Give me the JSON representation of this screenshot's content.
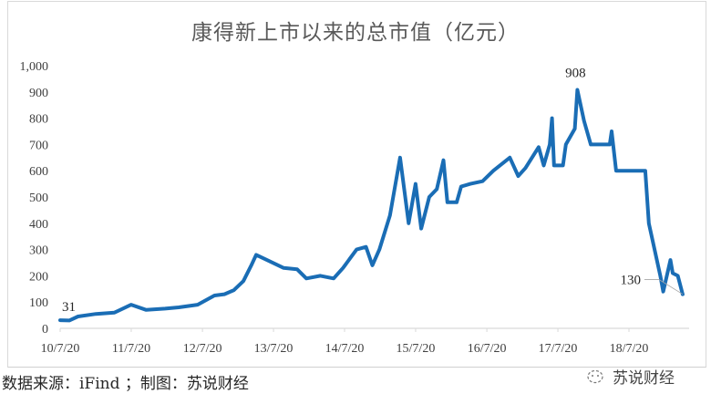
{
  "chart_data": {
    "type": "line",
    "title": "康得新上市以来的总市值（亿元）",
    "xlabel": "",
    "ylabel": "",
    "ylim": [
      0,
      1000
    ],
    "yticks": [
      "0",
      "100",
      "200",
      "300",
      "400",
      "500",
      "600",
      "700",
      "800",
      "900",
      "1,000"
    ],
    "xticks": [
      "10/7/20",
      "11/7/20",
      "12/7/20",
      "13/7/20",
      "14/7/20",
      "15/7/20",
      "16/7/20",
      "17/7/20",
      "18/7/20"
    ],
    "xtick_dates": [
      "2010-07-20",
      "2011-07-20",
      "2012-07-20",
      "2013-07-20",
      "2014-07-20",
      "2015-07-20",
      "2016-07-20",
      "2017-07-20",
      "2018-07-20"
    ],
    "grid": false,
    "legend": "none",
    "color": "#1a6db5",
    "series": [
      {
        "points": [
          [
            "2010-07-20",
            31
          ],
          [
            "2010-09-05",
            30
          ],
          [
            "2010-10-20",
            45
          ],
          [
            "2011-01-20",
            55
          ],
          [
            "2011-04-25",
            60
          ],
          [
            "2011-07-20",
            90
          ],
          [
            "2011-10-05",
            70
          ],
          [
            "2012-01-10",
            75
          ],
          [
            "2012-03-20",
            80
          ],
          [
            "2012-06-25",
            90
          ],
          [
            "2012-09-20",
            125
          ],
          [
            "2012-11-10",
            130
          ],
          [
            "2012-12-28",
            145
          ],
          [
            "2013-02-15",
            180
          ],
          [
            "2013-03-28",
            240
          ],
          [
            "2013-04-22",
            280
          ],
          [
            "2013-07-01",
            255
          ],
          [
            "2013-09-10",
            230
          ],
          [
            "2013-11-18",
            225
          ],
          [
            "2014-01-05",
            190
          ],
          [
            "2014-03-18",
            200
          ],
          [
            "2014-05-25",
            190
          ],
          [
            "2014-07-12",
            230
          ],
          [
            "2014-09-20",
            300
          ],
          [
            "2014-11-07",
            310
          ],
          [
            "2014-12-10",
            240
          ],
          [
            "2015-01-15",
            300
          ],
          [
            "2015-03-10",
            430
          ],
          [
            "2015-05-01",
            650
          ],
          [
            "2015-06-14",
            400
          ],
          [
            "2015-07-20",
            550
          ],
          [
            "2015-08-18",
            380
          ],
          [
            "2015-09-28",
            500
          ],
          [
            "2015-11-06",
            530
          ],
          [
            "2015-12-10",
            640
          ],
          [
            "2015-12-30",
            480
          ],
          [
            "2016-02-16",
            480
          ],
          [
            "2016-03-10",
            540
          ],
          [
            "2016-04-26",
            550
          ],
          [
            "2016-06-28",
            560
          ],
          [
            "2016-08-22",
            600
          ],
          [
            "2016-11-15",
            650
          ],
          [
            "2016-12-28",
            580
          ],
          [
            "2017-02-03",
            610
          ],
          [
            "2017-04-12",
            690
          ],
          [
            "2017-05-08",
            620
          ],
          [
            "2017-06-08",
            700
          ],
          [
            "2017-06-20",
            800
          ],
          [
            "2017-06-30",
            620
          ],
          [
            "2017-08-15",
            620
          ],
          [
            "2017-08-30",
            700
          ],
          [
            "2017-10-15",
            760
          ],
          [
            "2017-10-28",
            908
          ],
          [
            "2017-12-01",
            790
          ],
          [
            "2018-01-05",
            700
          ],
          [
            "2018-04-12",
            700
          ],
          [
            "2018-04-22",
            750
          ],
          [
            "2018-05-15",
            600
          ],
          [
            "2018-10-12",
            600
          ],
          [
            "2018-10-30",
            400
          ],
          [
            "2018-12-28",
            200
          ],
          [
            "2019-01-12",
            140
          ],
          [
            "2019-02-18",
            260
          ],
          [
            "2019-03-02",
            210
          ],
          [
            "2019-03-28",
            200
          ],
          [
            "2019-04-22",
            130
          ]
        ]
      }
    ],
    "annotations": [
      {
        "label": "31",
        "date": "2010-07-20",
        "value": 31
      },
      {
        "label": "908",
        "date": "2017-10-28",
        "value": 908
      },
      {
        "label": "130",
        "date": "2019-04-22",
        "value": 130
      }
    ]
  },
  "footer": {
    "source": "数据来源：iFind ；制图：苏说财经",
    "watermark": "苏说财经"
  }
}
